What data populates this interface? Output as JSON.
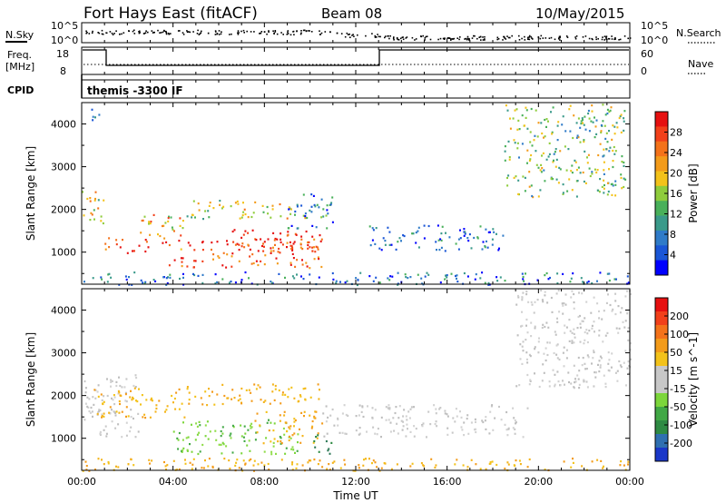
{
  "header": {
    "station": "Fort Hays East (fitACF)",
    "beam": "Beam 08",
    "date": "10/May/2015"
  },
  "labels": {
    "nsky": "N.Sky",
    "nsearch": "N.Search",
    "freq": "Freq.",
    "freq_unit": "[MHz]",
    "nave": "Nave",
    "cpid": "CPID",
    "program": "themis -3300 IF",
    "xlabel": "Time UT"
  },
  "noise_axis": {
    "left_ticks": [
      "10^5",
      "10^0"
    ],
    "right_ticks": [
      "10^5",
      "10^0"
    ]
  },
  "freq_axis": {
    "left_ticks": [
      "18",
      "8"
    ],
    "right_ticks": [
      "60",
      "0"
    ]
  },
  "chart_data": [
    {
      "type": "heatmap",
      "name": "power",
      "ylabel": "Slant Range [km]",
      "xlabel": "Time UT",
      "x_ticks": [
        "00:00",
        "04:00",
        "08:00",
        "12:00",
        "16:00",
        "20:00",
        "00:00"
      ],
      "y_ticks": [
        "1000",
        "2000",
        "3000",
        "4000"
      ],
      "ylim": [
        250,
        4500
      ],
      "colorbar": {
        "label": "Power [dB]",
        "ticks": [
          "4",
          "8",
          "12",
          "16",
          "20",
          "24",
          "28"
        ],
        "colors": [
          "#0000ff",
          "#1a56d6",
          "#2f7bc8",
          "#3a9a8a",
          "#49b05a",
          "#8fcc3c",
          "#f3c21a",
          "#f39b1a",
          "#f4721a",
          "#f2401a",
          "#e61010"
        ]
      },
      "regions": [
        {
          "t0": 0.0,
          "t1": 1.0,
          "r0": 1650,
          "r1": 2500,
          "level": 0.55
        },
        {
          "t0": 0.3,
          "t1": 0.8,
          "r0": 3950,
          "r1": 4400,
          "level": 0.2
        },
        {
          "t0": 1.0,
          "t1": 3.0,
          "r0": 1000,
          "r1": 1350,
          "level": 0.9
        },
        {
          "t0": 2.5,
          "t1": 4.5,
          "r0": 1300,
          "r1": 1900,
          "level": 0.65
        },
        {
          "t0": 4.5,
          "t1": 7.0,
          "r0": 1800,
          "r1": 2250,
          "level": 0.5
        },
        {
          "t0": 3.5,
          "t1": 10.5,
          "r0": 650,
          "r1": 1350,
          "level": 0.85
        },
        {
          "t0": 6.5,
          "t1": 10.5,
          "r0": 1050,
          "r1": 1550,
          "level": 0.95
        },
        {
          "t0": 7.0,
          "t1": 10.0,
          "r0": 1800,
          "r1": 2200,
          "level": 0.55
        },
        {
          "t0": 9.0,
          "t1": 11.0,
          "r0": 1550,
          "r1": 2400,
          "level": 0.3
        },
        {
          "t0": 12.5,
          "t1": 18.5,
          "r0": 1050,
          "r1": 1650,
          "level": 0.2
        },
        {
          "t0": 18.5,
          "t1": 23.8,
          "r0": 2300,
          "r1": 4500,
          "level": 0.45
        },
        {
          "t0": 0.0,
          "t1": 24.0,
          "r0": 250,
          "r1": 550,
          "level": 0.2
        }
      ]
    },
    {
      "type": "heatmap",
      "name": "velocity",
      "ylabel": "Slant Range [km]",
      "xlabel": "Time UT",
      "x_ticks": [
        "00:00",
        "04:00",
        "08:00",
        "12:00",
        "16:00",
        "20:00",
        "00:00"
      ],
      "y_ticks": [
        "1000",
        "2000",
        "3000",
        "4000"
      ],
      "ylim": [
        250,
        4500
      ],
      "colorbar": {
        "label": "Velocity [m s^-1]",
        "ticks": [
          "200",
          "100",
          "50",
          "15",
          "-15",
          "-50",
          "-100",
          "-200"
        ],
        "colors": [
          "#1a37c8",
          "#2f6fb0",
          "#2e8a43",
          "#41a845",
          "#7cd63b",
          "#c8c8c8",
          "#c8c8c8",
          "#f3c21a",
          "#f39b1a",
          "#f4721a",
          "#f2401a",
          "#e61010"
        ]
      },
      "regions": [
        {
          "t0": 0.0,
          "t1": 2.5,
          "r0": 1050,
          "r1": 2500,
          "vel": "gray"
        },
        {
          "t0": 0.5,
          "t1": 4.5,
          "r0": 1500,
          "r1": 2200,
          "vel": "orange"
        },
        {
          "t0": 4.5,
          "t1": 10.5,
          "r0": 1800,
          "r1": 2300,
          "vel": "orange"
        },
        {
          "t0": 4.0,
          "t1": 9.5,
          "r0": 650,
          "r1": 1450,
          "vel": "green"
        },
        {
          "t0": 7.5,
          "t1": 10.5,
          "r0": 900,
          "r1": 1650,
          "vel": "orange"
        },
        {
          "t0": 10.0,
          "t1": 11.0,
          "r0": 650,
          "r1": 1100,
          "vel": "darkgreen"
        },
        {
          "t0": 10.5,
          "t1": 19.5,
          "r0": 1050,
          "r1": 1800,
          "vel": "gray"
        },
        {
          "t0": 19.0,
          "t1": 24.0,
          "r0": 2200,
          "r1": 4500,
          "vel": "gray"
        },
        {
          "t0": 0.0,
          "t1": 24.0,
          "r0": 250,
          "r1": 550,
          "vel": "orange"
        }
      ]
    }
  ]
}
